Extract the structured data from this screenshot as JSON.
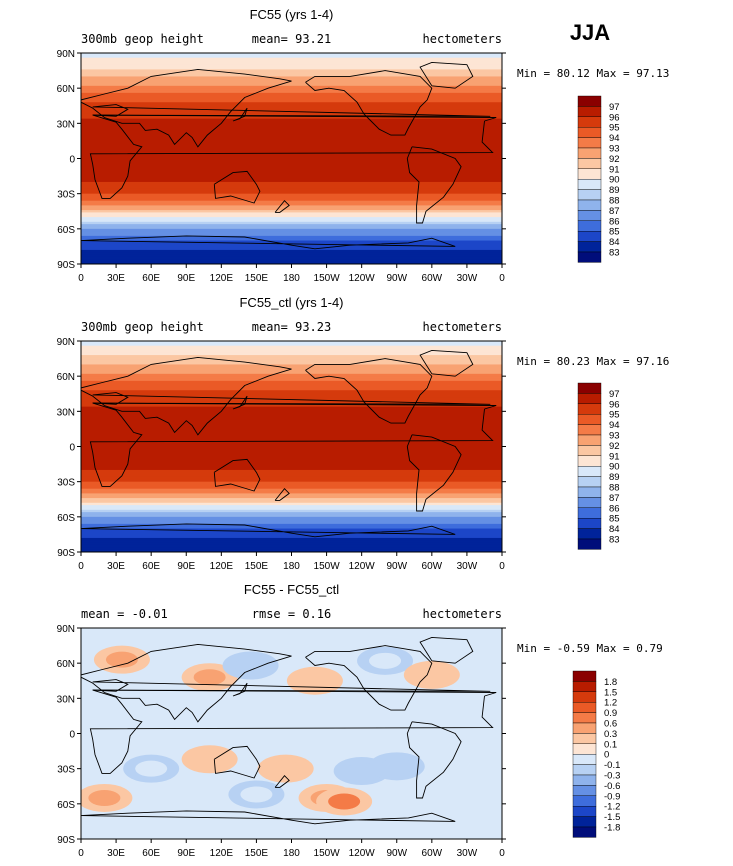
{
  "season": "JJA",
  "chart_data": [
    {
      "type": "heatmap",
      "title": "FC55 (yrs 1-4)",
      "left_label": "300mb geop height",
      "center_label": "mean=  93.21",
      "units": "hectometers",
      "stats": "Min =  80.12 Max =  97.13",
      "x_ticks": [
        "0",
        "30E",
        "60E",
        "90E",
        "120E",
        "150E",
        "180",
        "150W",
        "120W",
        "90W",
        "60W",
        "30W",
        "0"
      ],
      "y_ticks": [
        "90N",
        "60N",
        "30N",
        "0",
        "30S",
        "60S",
        "90S"
      ],
      "legend_levels": [
        "97",
        "96",
        "95",
        "94",
        "93",
        "92",
        "91",
        "90",
        "89",
        "88",
        "87",
        "86",
        "85",
        "84",
        "83"
      ],
      "legend_colors": [
        "#8a0000",
        "#b81c00",
        "#d53a0c",
        "#ea5a26",
        "#f47b47",
        "#f8a272",
        "#fbc7a3",
        "#fde5d4",
        "#d9e8f9",
        "#b7d1f3",
        "#8fb3ec",
        "#6590e4",
        "#3e6ddc",
        "#1c46c8",
        "#00239a",
        "#000d7a"
      ],
      "zonal_profile": {
        "lat": [
          90,
          75,
          60,
          45,
          30,
          15,
          0,
          -15,
          -30,
          -45,
          -60,
          -75,
          -90
        ],
        "value": [
          89.5,
          91.2,
          93.4,
          95.3,
          96.3,
          96.6,
          96.6,
          96.4,
          95.2,
          91.6,
          87.0,
          84.2,
          83.2
        ]
      }
    },
    {
      "type": "heatmap",
      "title": "FC55_ctl (yrs 1-4)",
      "left_label": "300mb geop height",
      "center_label": "mean=  93.23",
      "units": "hectometers",
      "stats": "Min =  80.23 Max =  97.16",
      "x_ticks": [
        "0",
        "30E",
        "60E",
        "90E",
        "120E",
        "150E",
        "180",
        "150W",
        "120W",
        "90W",
        "60W",
        "30W",
        "0"
      ],
      "y_ticks": [
        "90N",
        "60N",
        "30N",
        "0",
        "30S",
        "60S",
        "90S"
      ],
      "legend_levels": [
        "97",
        "96",
        "95",
        "94",
        "93",
        "92",
        "91",
        "90",
        "89",
        "88",
        "87",
        "86",
        "85",
        "84",
        "83"
      ],
      "legend_colors": [
        "#8a0000",
        "#b81c00",
        "#d53a0c",
        "#ea5a26",
        "#f47b47",
        "#f8a272",
        "#fbc7a3",
        "#fde5d4",
        "#d9e8f9",
        "#b7d1f3",
        "#8fb3ec",
        "#6590e4",
        "#3e6ddc",
        "#1c46c8",
        "#00239a",
        "#000d7a"
      ],
      "zonal_profile": {
        "lat": [
          90,
          75,
          60,
          45,
          30,
          15,
          0,
          -15,
          -30,
          -45,
          -60,
          -75,
          -90
        ],
        "value": [
          89.5,
          91.3,
          93.4,
          95.3,
          96.3,
          96.6,
          96.6,
          96.4,
          95.2,
          91.7,
          87.0,
          84.2,
          83.2
        ]
      }
    },
    {
      "type": "heatmap",
      "title": "FC55 - FC55_ctl",
      "left_label": "mean =  -0.01",
      "center_label": "rmse =   0.16",
      "units": "hectometers",
      "stats": "Min =  -0.59 Max =   0.79",
      "x_ticks": [
        "0",
        "30E",
        "60E",
        "90E",
        "120E",
        "150E",
        "180",
        "150W",
        "120W",
        "90W",
        "60W",
        "30W",
        "0"
      ],
      "y_ticks": [
        "90N",
        "60N",
        "30N",
        "0",
        "30S",
        "60S",
        "90S"
      ],
      "legend_levels": [
        "1.8",
        "1.5",
        "1.2",
        "0.9",
        "0.6",
        "0.3",
        "0.1",
        "0",
        "-0.1",
        "-0.3",
        "-0.6",
        "-0.9",
        "-1.2",
        "-1.5",
        "-1.8"
      ],
      "legend_colors": [
        "#8a0000",
        "#b81c00",
        "#d53a0c",
        "#ea5a26",
        "#f47b47",
        "#f8a272",
        "#fbc7a3",
        "#fde5d4",
        "#d9e8f9",
        "#b7d1f3",
        "#8fb3ec",
        "#6590e4",
        "#3e6ddc",
        "#1c46c8",
        "#00239a",
        "#000d7a"
      ],
      "anomalies": [
        {
          "lon": 35,
          "lat": 63,
          "value": 0.3
        },
        {
          "lon": 110,
          "lat": 48,
          "value": 0.3
        },
        {
          "lon": 145,
          "lat": 58,
          "value": -0.3
        },
        {
          "lon": 200,
          "lat": 45,
          "value": 0.1
        },
        {
          "lon": 260,
          "lat": 62,
          "value": -0.1
        },
        {
          "lon": 300,
          "lat": 50,
          "value": 0.1
        },
        {
          "lon": 110,
          "lat": -22,
          "value": 0.1
        },
        {
          "lon": 240,
          "lat": -32,
          "value": -0.3
        },
        {
          "lon": 270,
          "lat": -28,
          "value": -0.3
        },
        {
          "lon": 60,
          "lat": -30,
          "value": -0.1
        },
        {
          "lon": 20,
          "lat": -55,
          "value": 0.3
        },
        {
          "lon": 150,
          "lat": -52,
          "value": -0.1
        },
        {
          "lon": 175,
          "lat": -30,
          "value": 0.1
        },
        {
          "lon": 210,
          "lat": -55,
          "value": 0.3
        },
        {
          "lon": 225,
          "lat": -58,
          "value": 0.6
        }
      ]
    }
  ]
}
